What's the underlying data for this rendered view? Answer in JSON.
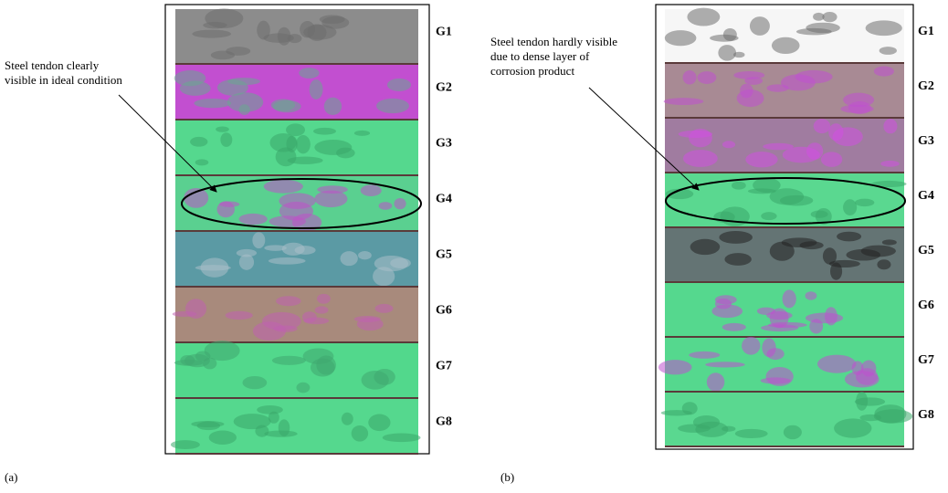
{
  "panels": [
    {
      "label": "(a)",
      "annotation": [
        "Steel tendon clearly",
        "visible in ideal condition"
      ],
      "strips": [
        "G1",
        "G2",
        "G3",
        "G4",
        "G5",
        "G6",
        "G7",
        "G8"
      ]
    },
    {
      "label": "(b)",
      "annotation": [
        "Steel tendon hardly visible",
        "due to dense layer of",
        "corrosion product"
      ],
      "strips": [
        "G1",
        "G2",
        "G3",
        "G4",
        "G5",
        "G6",
        "G7",
        "G8"
      ]
    }
  ]
}
